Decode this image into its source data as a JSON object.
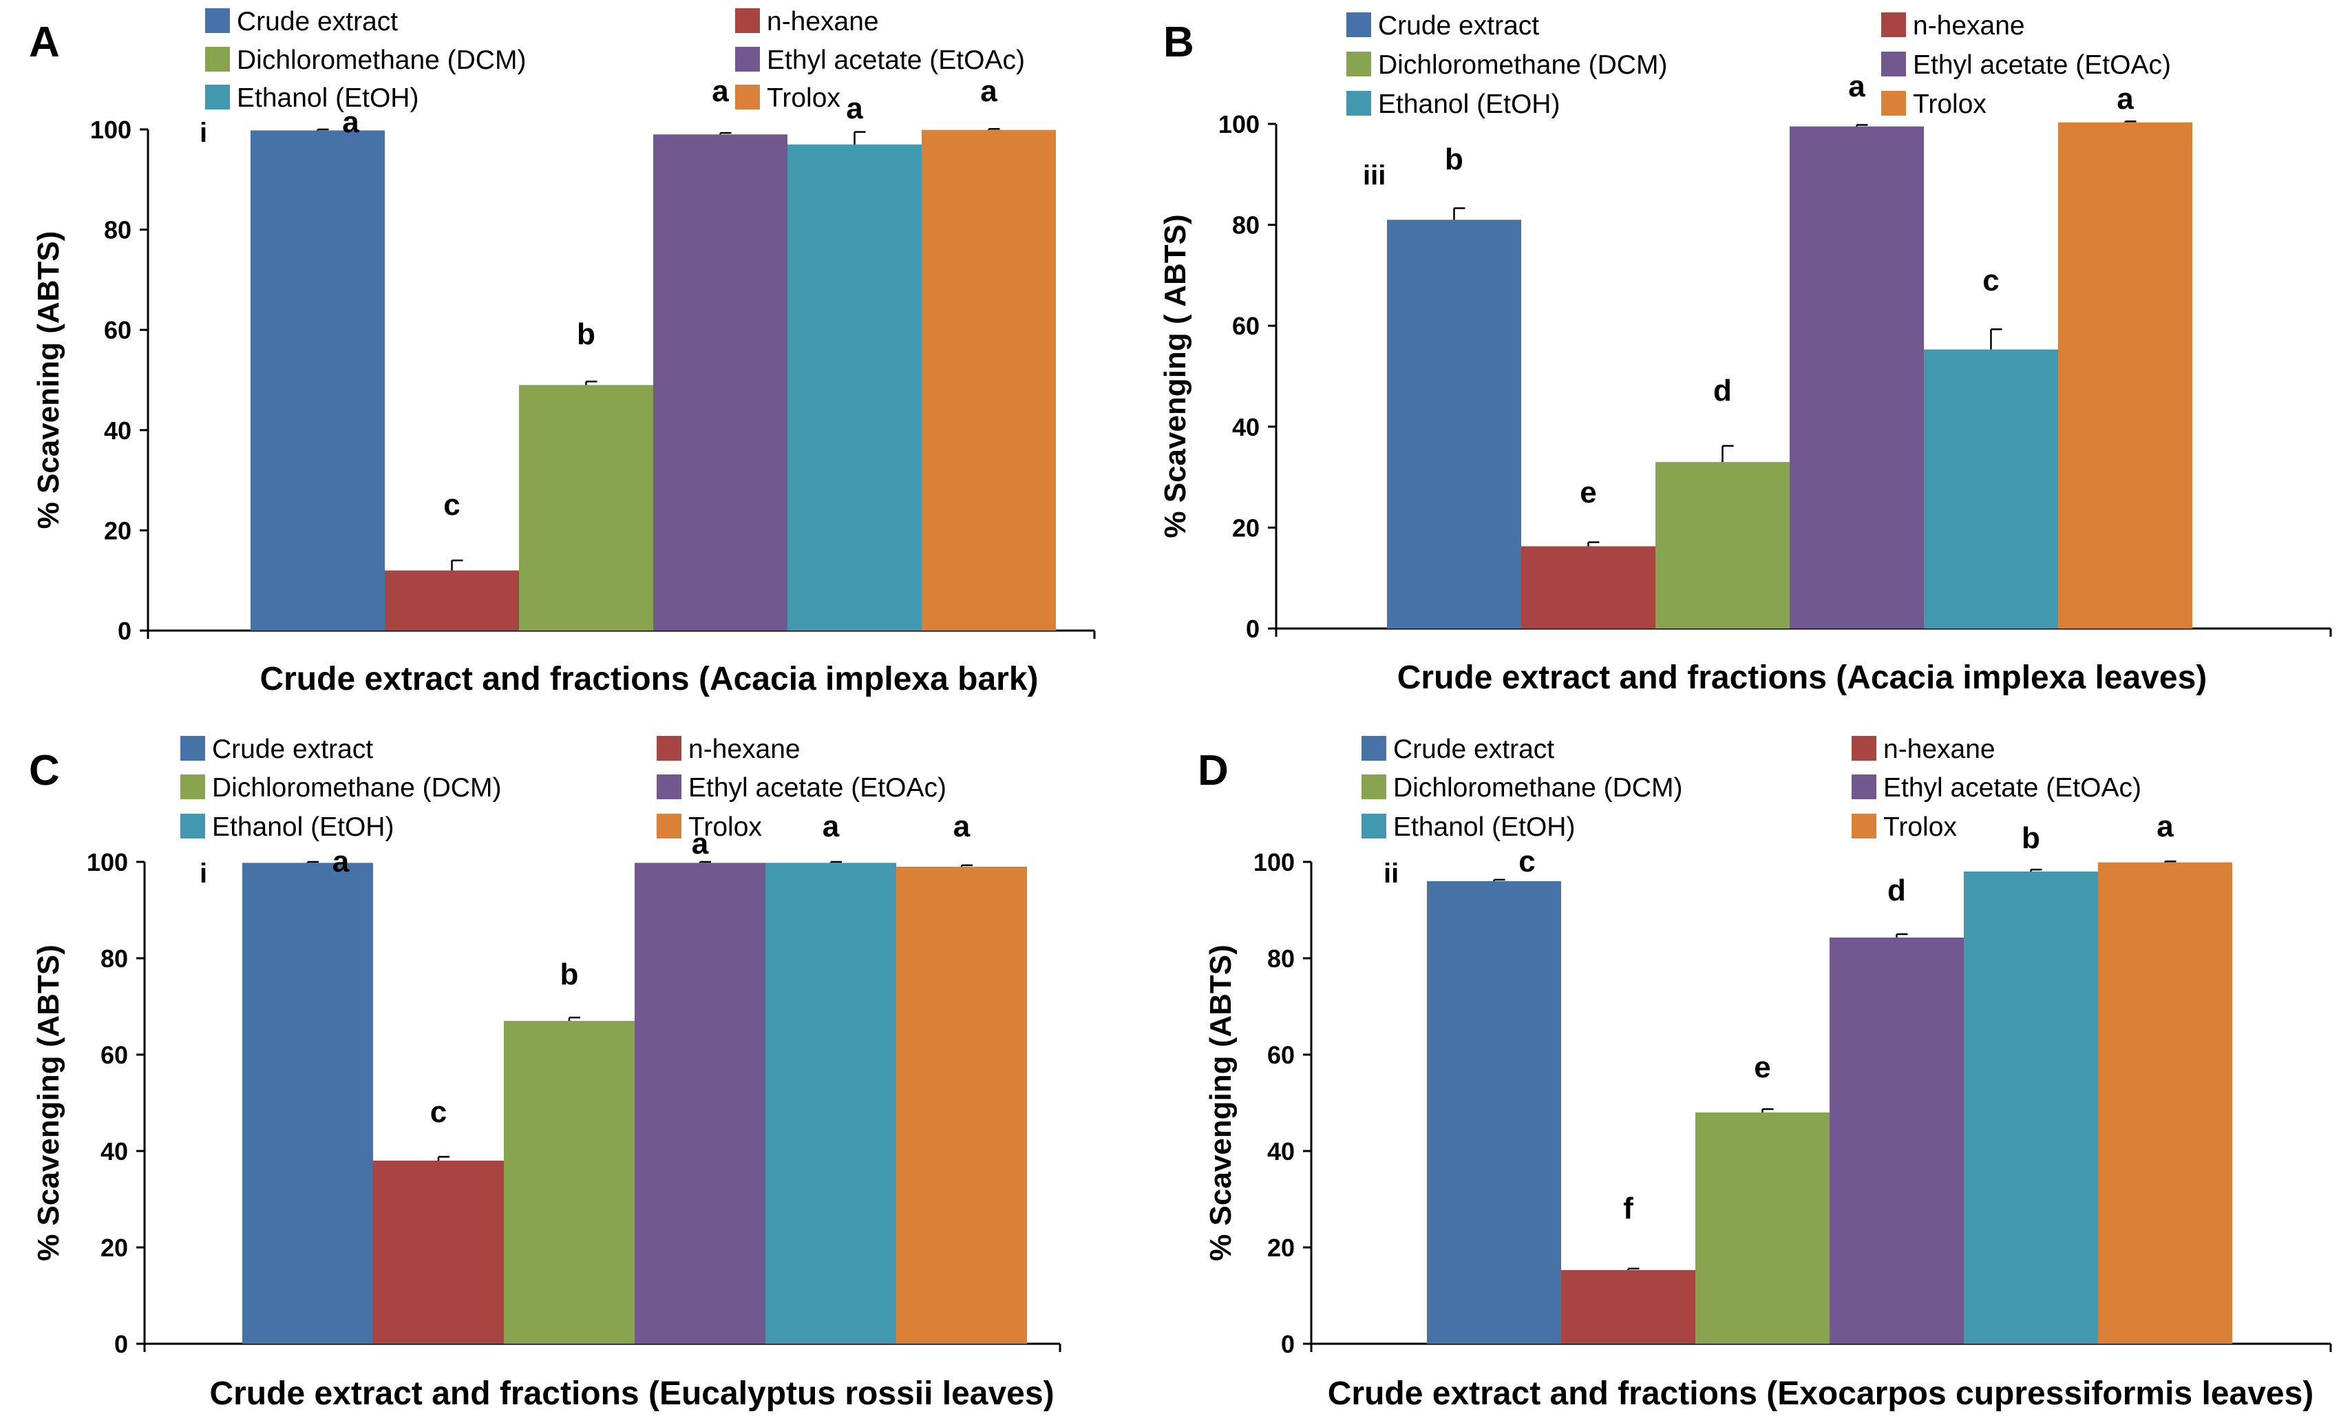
{
  "colors": {
    "crude": "#4672A8",
    "hexane": "#A84542",
    "dcm": "#88A44E",
    "etoac": "#71588F",
    "etoh": "#4298AF",
    "trolox": "#DA8137"
  },
  "chart_data": [
    {
      "type": "bar",
      "panel": "A",
      "xlabel": "Crude extract and fractions (Acacia implexa bark)",
      "ylabel": "% Scavening (ABTS)",
      "ylim": [
        0,
        100
      ],
      "yticks": [
        "0",
        "20",
        "40",
        "60",
        "80",
        "100"
      ],
      "roman": "i",
      "legend": [
        "Crude extract",
        "n-hexane",
        "Dichloromethane  (DCM)",
        "Ethyl acetate (EtOAc)",
        "Ethanol (EtOH)",
        "Trolox"
      ],
      "categories": [
        "Crude extract",
        "n-hexane",
        "Dichloromethane (DCM)",
        "Ethyl acetate (EtOAc)",
        "Ethanol (EtOH)",
        "Trolox"
      ],
      "values": [
        99.8,
        12.0,
        49.0,
        99.0,
        97.0,
        99.9
      ],
      "errors": [
        0.2,
        2.0,
        0.7,
        0.3,
        2.5,
        0.2
      ],
      "letters": [
        "a",
        "c",
        "b",
        "a",
        "a",
        "a"
      ]
    },
    {
      "type": "bar",
      "panel": "B",
      "xlabel": "Crude extract and fractions (Acacia implexa leaves)",
      "ylabel": "% Scavenging ( ABTS)",
      "ylim": [
        0,
        100
      ],
      "yticks": [
        "0",
        "20",
        "40",
        "60",
        "80",
        "100"
      ],
      "roman": "iii",
      "legend": [
        "Crude extract",
        "n-hexane",
        "Dichloromethane  (DCM)",
        "Ethyl acetate (EtOAc)",
        "Ethanol (EtOH)",
        "Trolox"
      ],
      "categories": [
        "Crude extract",
        "n-hexane",
        "Dichloromethane (DCM)",
        "Ethyl acetate (EtOAc)",
        "Ethanol (EtOH)",
        "Trolox"
      ],
      "values": [
        81.0,
        16.3,
        33.0,
        99.5,
        55.3,
        100.3
      ],
      "errors": [
        2.3,
        0.8,
        3.2,
        0.3,
        4.0,
        0.2
      ],
      "letters": [
        "b",
        "e",
        "d",
        "a",
        "c",
        "a"
      ]
    },
    {
      "type": "bar",
      "panel": "C",
      "xlabel": "Crude extract and fractions (Eucalyptus rossii leaves)",
      "ylabel": "% Scavenging (ABTS)",
      "ylim": [
        0,
        100
      ],
      "yticks": [
        "0",
        "20",
        "40",
        "60",
        "80",
        "100"
      ],
      "roman": "i",
      "legend": [
        "Crude extract",
        "n-hexane",
        "Dichloromethane  (DCM)",
        "Ethyl acetate (EtOAc)",
        "Ethanol (EtOH)",
        "Trolox"
      ],
      "categories": [
        "Crude extract",
        "n-hexane",
        "Dichloromethane (DCM)",
        "Ethyl acetate (EtOAc)",
        "Ethanol (EtOH)",
        "Trolox"
      ],
      "values": [
        99.8,
        38.0,
        67.0,
        99.8,
        99.8,
        99.0
      ],
      "errors": [
        0.2,
        0.8,
        0.7,
        0.2,
        0.2,
        0.3
      ],
      "letters": [
        "a",
        "c",
        "b",
        "a",
        "a",
        "a"
      ]
    },
    {
      "type": "bar",
      "panel": "D",
      "xlabel": "Crude extract and fractions (Exocarpos cupressiformis leaves)",
      "ylabel": "% Scavenging (ABTS)",
      "ylim": [
        0,
        100
      ],
      "yticks": [
        "0",
        "20",
        "40",
        "60",
        "80",
        "100"
      ],
      "roman": "ii",
      "legend": [
        "Crude extract",
        "n-hexane",
        "Dichloromethane  (DCM)",
        "Ethyl acetate (EtOAc)",
        "Ethanol (EtOH)",
        "Trolox"
      ],
      "categories": [
        "Crude extract",
        "n-hexane",
        "Dichloromethane (DCM)",
        "Ethyl acetate (EtOAc)",
        "Ethanol (EtOH)",
        "Trolox"
      ],
      "values": [
        96.0,
        15.3,
        48.0,
        84.3,
        98.0,
        99.9
      ],
      "errors": [
        0.3,
        0.3,
        0.7,
        0.7,
        0.4,
        0.2
      ],
      "letters": [
        "c",
        "f",
        "e",
        "d",
        "b",
        "a"
      ]
    }
  ]
}
